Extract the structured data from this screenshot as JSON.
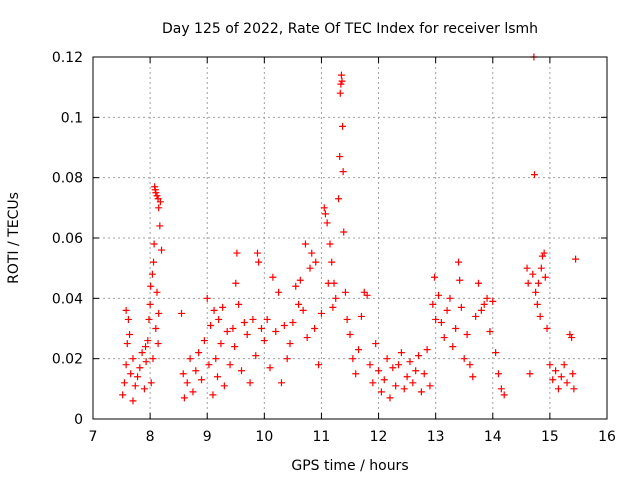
{
  "chart_data": {
    "type": "scatter",
    "title": "Day 125 of 2022, Rate Of TEC Index for receiver lsmh",
    "xlabel": "GPS time / hours",
    "ylabel": "ROTI / TECUs",
    "xlim": [
      7,
      16
    ],
    "ylim": [
      0,
      0.12
    ],
    "x_ticks": [
      7,
      8,
      9,
      10,
      11,
      12,
      13,
      14,
      15,
      16
    ],
    "x_tick_labels": [
      "7",
      "8",
      "9",
      "10",
      "11",
      "12",
      "13",
      "14",
      "15",
      "16"
    ],
    "y_ticks": [
      0,
      0.02,
      0.04,
      0.06,
      0.08,
      0.1,
      0.12
    ],
    "y_tick_labels": [
      "0",
      "0.02",
      "0.04",
      "0.06",
      "0.08",
      "0.1",
      "0.12"
    ],
    "grid": true,
    "marker": "+",
    "color": "#ff0000",
    "series": [
      {
        "name": "",
        "points": [
          [
            7.52,
            0.008
          ],
          [
            7.55,
            0.012
          ],
          [
            7.58,
            0.018
          ],
          [
            7.6,
            0.025
          ],
          [
            7.62,
            0.033
          ],
          [
            7.64,
            0.028
          ],
          [
            7.66,
            0.015
          ],
          [
            7.7,
            0.02
          ],
          [
            7.74,
            0.011
          ],
          [
            7.78,
            0.014
          ],
          [
            7.82,
            0.017
          ],
          [
            7.86,
            0.022
          ],
          [
            7.9,
            0.01
          ],
          [
            7.93,
            0.019
          ],
          [
            7.96,
            0.026
          ],
          [
            7.98,
            0.033
          ],
          [
            8.0,
            0.038
          ],
          [
            8.01,
            0.044
          ],
          [
            8.02,
            0.012
          ],
          [
            8.04,
            0.048
          ],
          [
            8.06,
            0.052
          ],
          [
            8.07,
            0.058
          ],
          [
            8.08,
            0.077
          ],
          [
            8.09,
            0.076
          ],
          [
            8.1,
            0.075
          ],
          [
            8.12,
            0.074
          ],
          [
            8.14,
            0.073
          ],
          [
            8.15,
            0.07
          ],
          [
            8.17,
            0.064
          ],
          [
            8.18,
            0.072
          ],
          [
            8.2,
            0.056
          ],
          [
            8.12,
            0.042
          ],
          [
            8.15,
            0.035
          ],
          [
            8.1,
            0.03
          ],
          [
            8.14,
            0.025
          ],
          [
            8.05,
            0.02
          ],
          [
            7.92,
            0.024
          ],
          [
            7.7,
            0.006
          ],
          [
            7.58,
            0.036
          ],
          [
            8.55,
            0.035
          ],
          [
            8.58,
            0.015
          ],
          [
            8.6,
            0.007
          ],
          [
            8.65,
            0.012
          ],
          [
            8.7,
            0.02
          ],
          [
            8.75,
            0.009
          ],
          [
            8.8,
            0.016
          ],
          [
            8.85,
            0.022
          ],
          [
            8.9,
            0.013
          ],
          [
            8.95,
            0.026
          ],
          [
            9.0,
            0.04
          ],
          [
            9.03,
            0.018
          ],
          [
            9.06,
            0.031
          ],
          [
            9.1,
            0.008
          ],
          [
            9.12,
            0.036
          ],
          [
            9.15,
            0.02
          ],
          [
            9.18,
            0.014
          ],
          [
            9.2,
            0.033
          ],
          [
            9.24,
            0.025
          ],
          [
            9.27,
            0.037
          ],
          [
            9.3,
            0.011
          ],
          [
            9.35,
            0.029
          ],
          [
            9.4,
            0.018
          ],
          [
            9.45,
            0.03
          ],
          [
            9.48,
            0.024
          ],
          [
            9.5,
            0.045
          ],
          [
            9.52,
            0.055
          ],
          [
            9.55,
            0.038
          ],
          [
            9.6,
            0.016
          ],
          [
            9.65,
            0.032
          ],
          [
            9.7,
            0.028
          ],
          [
            9.75,
            0.012
          ],
          [
            9.8,
            0.033
          ],
          [
            9.85,
            0.021
          ],
          [
            9.88,
            0.055
          ],
          [
            9.9,
            0.052
          ],
          [
            9.95,
            0.03
          ],
          [
            10.0,
            0.026
          ],
          [
            10.05,
            0.033
          ],
          [
            10.1,
            0.017
          ],
          [
            10.15,
            0.047
          ],
          [
            10.2,
            0.029
          ],
          [
            10.25,
            0.042
          ],
          [
            10.3,
            0.012
          ],
          [
            10.35,
            0.031
          ],
          [
            10.4,
            0.02
          ],
          [
            10.45,
            0.025
          ],
          [
            10.5,
            0.032
          ],
          [
            10.55,
            0.044
          ],
          [
            10.6,
            0.038
          ],
          [
            10.63,
            0.046
          ],
          [
            10.68,
            0.036
          ],
          [
            10.72,
            0.058
          ],
          [
            10.75,
            0.027
          ],
          [
            10.8,
            0.05
          ],
          [
            10.83,
            0.055
          ],
          [
            10.88,
            0.03
          ],
          [
            10.9,
            0.052
          ],
          [
            10.95,
            0.018
          ],
          [
            11.0,
            0.035
          ],
          [
            11.05,
            0.07
          ],
          [
            11.07,
            0.068
          ],
          [
            11.1,
            0.065
          ],
          [
            11.12,
            0.045
          ],
          [
            11.15,
            0.058
          ],
          [
            11.18,
            0.052
          ],
          [
            11.2,
            0.037
          ],
          [
            11.22,
            0.045
          ],
          [
            11.25,
            0.04
          ],
          [
            11.3,
            0.073
          ],
          [
            11.32,
            0.087
          ],
          [
            11.33,
            0.108
          ],
          [
            11.34,
            0.111
          ],
          [
            11.35,
            0.114
          ],
          [
            11.36,
            0.112
          ],
          [
            11.37,
            0.097
          ],
          [
            11.38,
            0.082
          ],
          [
            11.39,
            0.062
          ],
          [
            11.42,
            0.042
          ],
          [
            11.45,
            0.033
          ],
          [
            11.5,
            0.028
          ],
          [
            11.55,
            0.02
          ],
          [
            11.6,
            0.015
          ],
          [
            11.65,
            0.023
          ],
          [
            11.7,
            0.034
          ],
          [
            11.75,
            0.042
          ],
          [
            11.8,
            0.041
          ],
          [
            11.85,
            0.018
          ],
          [
            11.9,
            0.012
          ],
          [
            11.95,
            0.025
          ],
          [
            12.0,
            0.016
          ],
          [
            12.05,
            0.009
          ],
          [
            12.1,
            0.013
          ],
          [
            12.15,
            0.02
          ],
          [
            12.2,
            0.007
          ],
          [
            12.25,
            0.017
          ],
          [
            12.3,
            0.011
          ],
          [
            12.35,
            0.018
          ],
          [
            12.4,
            0.022
          ],
          [
            12.45,
            0.01
          ],
          [
            12.5,
            0.014
          ],
          [
            12.55,
            0.019
          ],
          [
            12.6,
            0.012
          ],
          [
            12.65,
            0.016
          ],
          [
            12.7,
            0.021
          ],
          [
            12.75,
            0.009
          ],
          [
            12.8,
            0.015
          ],
          [
            12.85,
            0.023
          ],
          [
            12.9,
            0.011
          ],
          [
            12.95,
            0.038
          ],
          [
            12.98,
            0.047
          ],
          [
            13.0,
            0.033
          ],
          [
            13.05,
            0.041
          ],
          [
            13.1,
            0.032
          ],
          [
            13.15,
            0.027
          ],
          [
            13.2,
            0.036
          ],
          [
            13.25,
            0.04
          ],
          [
            13.3,
            0.024
          ],
          [
            13.35,
            0.03
          ],
          [
            13.4,
            0.052
          ],
          [
            13.42,
            0.046
          ],
          [
            13.45,
            0.037
          ],
          [
            13.5,
            0.02
          ],
          [
            13.55,
            0.028
          ],
          [
            13.6,
            0.018
          ],
          [
            13.65,
            0.014
          ],
          [
            13.7,
            0.034
          ],
          [
            13.75,
            0.045
          ],
          [
            13.8,
            0.036
          ],
          [
            13.85,
            0.038
          ],
          [
            13.9,
            0.04
          ],
          [
            13.95,
            0.029
          ],
          [
            14.0,
            0.039
          ],
          [
            14.05,
            0.022
          ],
          [
            14.1,
            0.015
          ],
          [
            14.15,
            0.01
          ],
          [
            14.2,
            0.008
          ],
          [
            14.6,
            0.05
          ],
          [
            14.62,
            0.045
          ],
          [
            14.65,
            0.015
          ],
          [
            14.7,
            0.048
          ],
          [
            14.72,
            0.12
          ],
          [
            14.73,
            0.081
          ],
          [
            14.75,
            0.042
          ],
          [
            14.78,
            0.038
          ],
          [
            14.8,
            0.045
          ],
          [
            14.83,
            0.034
          ],
          [
            14.85,
            0.05
          ],
          [
            14.87,
            0.054
          ],
          [
            14.9,
            0.055
          ],
          [
            14.92,
            0.047
          ],
          [
            14.95,
            0.03
          ],
          [
            15.0,
            0.018
          ],
          [
            15.05,
            0.013
          ],
          [
            15.1,
            0.016
          ],
          [
            15.15,
            0.01
          ],
          [
            15.2,
            0.014
          ],
          [
            15.25,
            0.018
          ],
          [
            15.3,
            0.012
          ],
          [
            15.35,
            0.028
          ],
          [
            15.38,
            0.027
          ],
          [
            15.4,
            0.015
          ],
          [
            15.42,
            0.01
          ],
          [
            15.45,
            0.053
          ]
        ]
      }
    ]
  }
}
